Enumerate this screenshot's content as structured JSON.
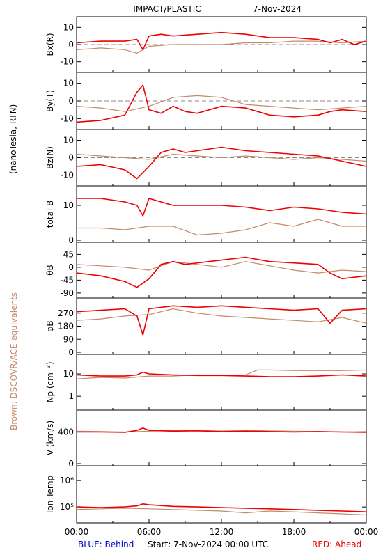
{
  "title": "IMPACT/PLASTIC",
  "date": "7-Nov-2024",
  "side_label_units": "(nanoTesla, RTN)",
  "side_label_brown": "Brown: DSCOVR/ACE equivalents",
  "footer": {
    "blue": "BLUE: Behind",
    "start": "Start:  7-Nov-2024 00:00 UTC",
    "red": "RED: Ahead"
  },
  "colors": {
    "ahead": "#ee0000",
    "ace": "#c48a6a",
    "behind": "#0000cc",
    "zero_line": "#888888"
  },
  "chart_data": {
    "type": "line",
    "x_ticks": [
      "00:00",
      "06:00",
      "12:00",
      "18:00",
      "00:00"
    ],
    "xlim_hours": [
      0,
      24
    ],
    "panels": [
      {
        "id": "bx",
        "ylabel": "Bx(R)",
        "ylim": [
          -15,
          15
        ],
        "yticks": [
          "10",
          "0",
          "-10"
        ],
        "ytick_values": [
          10,
          0,
          -10
        ],
        "log": false,
        "zero_line": true,
        "series": [
          {
            "name": "Ahead",
            "hours": [
              0,
              2,
              4,
              5,
              5.5,
              6,
              7,
              8,
              10,
              12,
              14,
              16,
              18,
              20,
              21,
              22,
              23,
              24
            ],
            "values": [
              1,
              2,
              2,
              3,
              -3,
              5,
              6,
              5,
              6,
              7,
              6,
              4,
              4,
              3,
              1,
              3,
              0,
              2
            ]
          },
          {
            "name": "ACE",
            "hours": [
              0,
              2,
              4,
              5,
              6,
              8,
              10,
              12,
              14,
              16,
              18,
              20,
              22,
              24
            ],
            "values": [
              -3,
              -2,
              -3,
              -5,
              -1,
              0,
              0,
              0,
              1,
              1,
              2,
              2,
              1,
              2
            ]
          }
        ]
      },
      {
        "id": "by",
        "ylabel": "By(T)",
        "ylim": [
          -15,
          15
        ],
        "yticks": [
          "10",
          "0",
          "-10"
        ],
        "ytick_values": [
          10,
          0,
          -10
        ],
        "log": false,
        "zero_line": true,
        "series": [
          {
            "name": "Ahead",
            "hours": [
              0,
              2,
              4,
              5,
              5.5,
              6,
              7,
              8,
              9,
              10,
              12,
              14,
              16,
              18,
              20,
              21,
              22,
              24
            ],
            "values": [
              -12,
              -11,
              -8,
              5,
              9,
              -5,
              -7,
              -3,
              -6,
              -7,
              -3,
              -4,
              -8,
              -9,
              -8,
              -6,
              -5,
              -6
            ]
          },
          {
            "name": "ACE",
            "hours": [
              0,
              2,
              4,
              6,
              8,
              10,
              12,
              14,
              16,
              18,
              20,
              22,
              24
            ],
            "values": [
              -3,
              -4,
              -6,
              -3,
              2,
              3,
              2,
              -2,
              -3,
              -4,
              -5,
              -4,
              -3
            ]
          }
        ]
      },
      {
        "id": "bz",
        "ylabel": "Bz(N)",
        "ylim": [
          -15,
          15
        ],
        "yticks": [
          "10",
          "0",
          "-10"
        ],
        "ytick_values": [
          10,
          0,
          -10
        ],
        "log": false,
        "zero_line": true,
        "series": [
          {
            "name": "Ahead",
            "hours": [
              0,
              2,
              4,
              5,
              6,
              7,
              8,
              9,
              10,
              12,
              14,
              16,
              18,
              20,
              22,
              24
            ],
            "values": [
              -5,
              -4,
              -7,
              -12,
              -5,
              3,
              5,
              3,
              4,
              6,
              4,
              3,
              2,
              1,
              -2,
              -5
            ]
          },
          {
            "name": "ACE",
            "hours": [
              0,
              2,
              4,
              6,
              8,
              10,
              12,
              14,
              16,
              18,
              20,
              22,
              24
            ],
            "values": [
              2,
              1,
              0,
              -1,
              2,
              1,
              0,
              1,
              0,
              -1,
              0,
              -1,
              -2
            ]
          }
        ]
      },
      {
        "id": "btot",
        "ylabel": "total B",
        "ylim": [
          0,
          15
        ],
        "yticks": [
          "10",
          "0"
        ],
        "ytick_values": [
          10,
          0
        ],
        "log": false,
        "zero_line": false,
        "series": [
          {
            "name": "Ahead",
            "hours": [
              0,
              2,
              4,
              5,
              5.5,
              6,
              7,
              8,
              10,
              12,
              14,
              16,
              18,
              20,
              22,
              24
            ],
            "values": [
              12,
              12,
              11,
              10,
              7,
              12,
              11,
              10,
              10,
              10,
              9.5,
              8.5,
              9.5,
              9,
              8,
              7.5
            ]
          },
          {
            "name": "ACE",
            "hours": [
              0,
              2,
              4,
              6,
              8,
              10,
              12,
              14,
              16,
              18,
              20,
              22,
              24
            ],
            "values": [
              3.5,
              3.5,
              3,
              4,
              4,
              1.5,
              2,
              3,
              5,
              4,
              6,
              4,
              4
            ]
          }
        ]
      },
      {
        "id": "theta",
        "ylabel": "θB",
        "ylim": [
          -100,
          80
        ],
        "yticks": [
          "45",
          "0",
          "-45",
          "-90"
        ],
        "ytick_values": [
          45,
          0,
          -45,
          -90
        ],
        "log": false,
        "zero_line": false,
        "series": [
          {
            "name": "Ahead",
            "hours": [
              0,
              2,
              4,
              5,
              6,
              7,
              8,
              9,
              10,
              12,
              14,
              16,
              18,
              20,
              21,
              22,
              24
            ],
            "values": [
              -20,
              -30,
              -50,
              -70,
              -40,
              10,
              20,
              10,
              15,
              25,
              35,
              20,
              15,
              10,
              -20,
              -40,
              -30
            ]
          },
          {
            "name": "ACE",
            "hours": [
              0,
              2,
              4,
              6,
              8,
              10,
              12,
              14,
              16,
              18,
              20,
              22,
              24
            ],
            "values": [
              10,
              5,
              0,
              -10,
              20,
              10,
              0,
              20,
              5,
              -10,
              -20,
              -10,
              -15
            ]
          }
        ]
      },
      {
        "id": "phi",
        "ylabel": "φB",
        "ylim": [
          0,
          360
        ],
        "yticks": [
          "270",
          "180",
          "90",
          "0"
        ],
        "ytick_values": [
          270,
          180,
          90,
          0
        ],
        "log": false,
        "zero_line": false,
        "series": [
          {
            "name": "Ahead",
            "hours": [
              0,
              2,
              4,
              5,
              5.5,
              6,
              8,
              10,
              12,
              14,
              16,
              18,
              20,
              21,
              22,
              24
            ],
            "values": [
              280,
              290,
              300,
              250,
              120,
              300,
              320,
              310,
              320,
              310,
              300,
              290,
              300,
              200,
              290,
              300
            ]
          },
          {
            "name": "ACE",
            "hours": [
              0,
              2,
              4,
              6,
              8,
              10,
              12,
              14,
              16,
              18,
              20,
              22,
              24
            ],
            "values": [
              220,
              230,
              250,
              260,
              300,
              270,
              250,
              240,
              230,
              220,
              210,
              240,
              200
            ]
          }
        ]
      },
      {
        "id": "np",
        "ylabel": "Np (cm⁻³)",
        "ylim": [
          0.3,
          60
        ],
        "yticks": [
          "10",
          "1"
        ],
        "ytick_values": [
          10,
          1
        ],
        "log": true,
        "zero_line": false,
        "series": [
          {
            "name": "Ahead",
            "hours": [
              0,
              2,
              4,
              5,
              5.5,
              6,
              8,
              10,
              12,
              14,
              16,
              18,
              20,
              22,
              24
            ],
            "values": [
              9,
              8,
              8,
              9,
              12,
              10,
              9,
              8.5,
              8.5,
              8,
              7.5,
              7.5,
              8,
              9,
              8
            ]
          },
          {
            "name": "ACE",
            "hours": [
              0,
              2,
              4,
              6,
              8,
              10,
              12,
              14,
              15,
              16,
              18,
              20,
              22,
              24
            ],
            "values": [
              6,
              7,
              6.5,
              8,
              8,
              9,
              8.5,
              9,
              15,
              15,
              14,
              14,
              14,
              15
            ]
          }
        ]
      },
      {
        "id": "v",
        "ylabel": "V (km/s)",
        "ylim": [
          0,
          650
        ],
        "yticks": [
          "400",
          "0"
        ],
        "ytick_values": [
          400,
          0
        ],
        "log": false,
        "zero_line": false,
        "series": [
          {
            "name": "Ahead",
            "hours": [
              0,
              2,
              4,
              5,
              5.5,
              6,
              8,
              10,
              12,
              14,
              16,
              18,
              20,
              22,
              24
            ],
            "values": [
              400,
              400,
              395,
              420,
              450,
              420,
              410,
              415,
              405,
              410,
              405,
              400,
              405,
              400,
              395
            ]
          },
          {
            "name": "ACE",
            "hours": [
              0,
              2,
              4,
              6,
              8,
              10,
              12,
              14,
              16,
              18,
              20,
              22,
              24
            ],
            "values": [
              410,
              405,
              400,
              410,
              420,
              425,
              420,
              420,
              415,
              410,
              405,
              400,
              405
            ]
          }
        ]
      },
      {
        "id": "temp",
        "ylabel": "Ion Temp",
        "ylim": [
          30000,
          3000000
        ],
        "yticks": [
          "10⁶",
          "10⁵"
        ],
        "ytick_values": [
          1000000,
          100000
        ],
        "log": true,
        "zero_line": false,
        "series": [
          {
            "name": "Ahead",
            "hours": [
              0,
              2,
              4,
              5,
              5.5,
              6,
              8,
              10,
              12,
              14,
              16,
              18,
              20,
              22,
              24
            ],
            "values": [
              100000,
              95000,
              100000,
              110000,
              130000,
              120000,
              105000,
              100000,
              95000,
              90000,
              85000,
              80000,
              75000,
              70000,
              65000
            ]
          },
          {
            "name": "ACE",
            "hours": [
              0,
              2,
              4,
              6,
              8,
              10,
              12,
              14,
              16,
              18,
              20,
              22,
              24
            ],
            "values": [
              80000,
              85000,
              90000,
              85000,
              80000,
              75000,
              70000,
              60000,
              70000,
              65000,
              60000,
              55000,
              50000
            ]
          }
        ]
      }
    ]
  }
}
